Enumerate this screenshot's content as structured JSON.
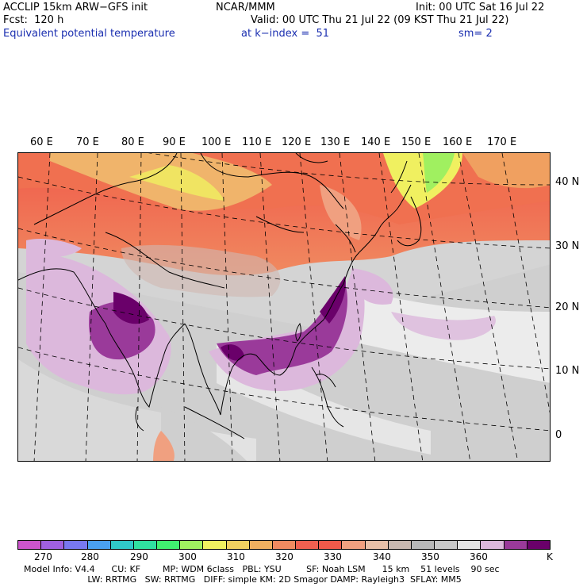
{
  "header": {
    "line1_left": "ACCLIP 15km ARW−GFS init",
    "line1_center": "NCAR/MMM",
    "line1_right": "Init: 00 UTC Sat 16 Jul 22",
    "line2_left": "Fcst:  120 h",
    "line2_right": "Valid: 00 UTC Thu 21 Jul 22 (09 KST Thu 21 Jul 22)",
    "line3_left": "Equivalent potential temperature",
    "line3_center": "at k−index =  51",
    "line3_right": "sm= 2"
  },
  "map": {
    "lon_labels": [
      "60 E",
      "70 E",
      "80 E",
      "90 E",
      "100 E",
      "110 E",
      "120 E",
      "130 E",
      "140 E",
      "150 E",
      "160 E",
      "170 E"
    ],
    "lat_labels": [
      "40 N",
      "30 N",
      "20 N",
      "10 N",
      "0"
    ]
  },
  "colorbar": {
    "colors": [
      "#cc55cc",
      "#a060e0",
      "#7878f0",
      "#4aa0f0",
      "#30c8c8",
      "#30e0a0",
      "#40f070",
      "#a0f060",
      "#f0f060",
      "#f0d060",
      "#f0b060",
      "#f08a60",
      "#f06050",
      "#f05a4a",
      "#f0a080",
      "#e8c0a8",
      "#c8b8b0",
      "#b8b8b8",
      "#c8c8c8",
      "#e4e4e4",
      "#dcb8dc",
      "#9a3a9a",
      "#6a006a"
    ],
    "labels": [
      "270",
      "280",
      "290",
      "300",
      "310",
      "320",
      "330",
      "340",
      "350",
      "360"
    ],
    "unit": "K"
  },
  "footer": {
    "line1": "Model Info: V4.4      CU: KF        MP: WDM 6class   PBL: YSU         SF: Noah LSM      15 km    51 levels    90 sec",
    "line2": "                       LW: RRTMG   SW: RRTMG   DIFF: simple KM: 2D Smagor DAMP: Rayleigh3  SFLAY: MM5"
  }
}
